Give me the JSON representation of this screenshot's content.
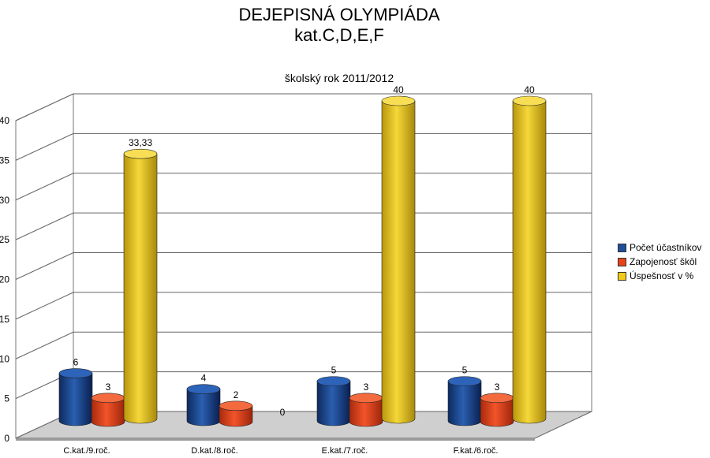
{
  "chart_data": {
    "type": "bar",
    "title_line1": "DEJEPISNÁ  OLYMPIÁDA",
    "title_line2": "kat.C,D,E,F",
    "subtitle": "školský rok 2011/2012",
    "categories": [
      "C.kat./9.roč.",
      "D.kat./8.roč.",
      "E.kat./7.roč.",
      "F.kat./6.roč."
    ],
    "series": [
      {
        "name": "Počet účastníkov",
        "values": [
          6,
          4,
          5,
          5
        ],
        "labels": [
          "6",
          "4",
          "5",
          "5"
        ],
        "color": "#1f4e9c"
      },
      {
        "name": "Zapojenosť škôl",
        "values": [
          3,
          2,
          3,
          3
        ],
        "labels": [
          "3",
          "2",
          "3",
          "3"
        ],
        "color": "#e8441c"
      },
      {
        "name": "Úspešnosť v %",
        "values": [
          33.33,
          0,
          40,
          40
        ],
        "labels": [
          "33,33",
          "0",
          "40",
          "40"
        ],
        "color": "#f2cc1a"
      }
    ],
    "yticks": [
      0,
      5,
      10,
      15,
      20,
      25,
      30,
      35,
      40
    ],
    "ylim": [
      0,
      40
    ],
    "grid": true,
    "legend": "right"
  }
}
